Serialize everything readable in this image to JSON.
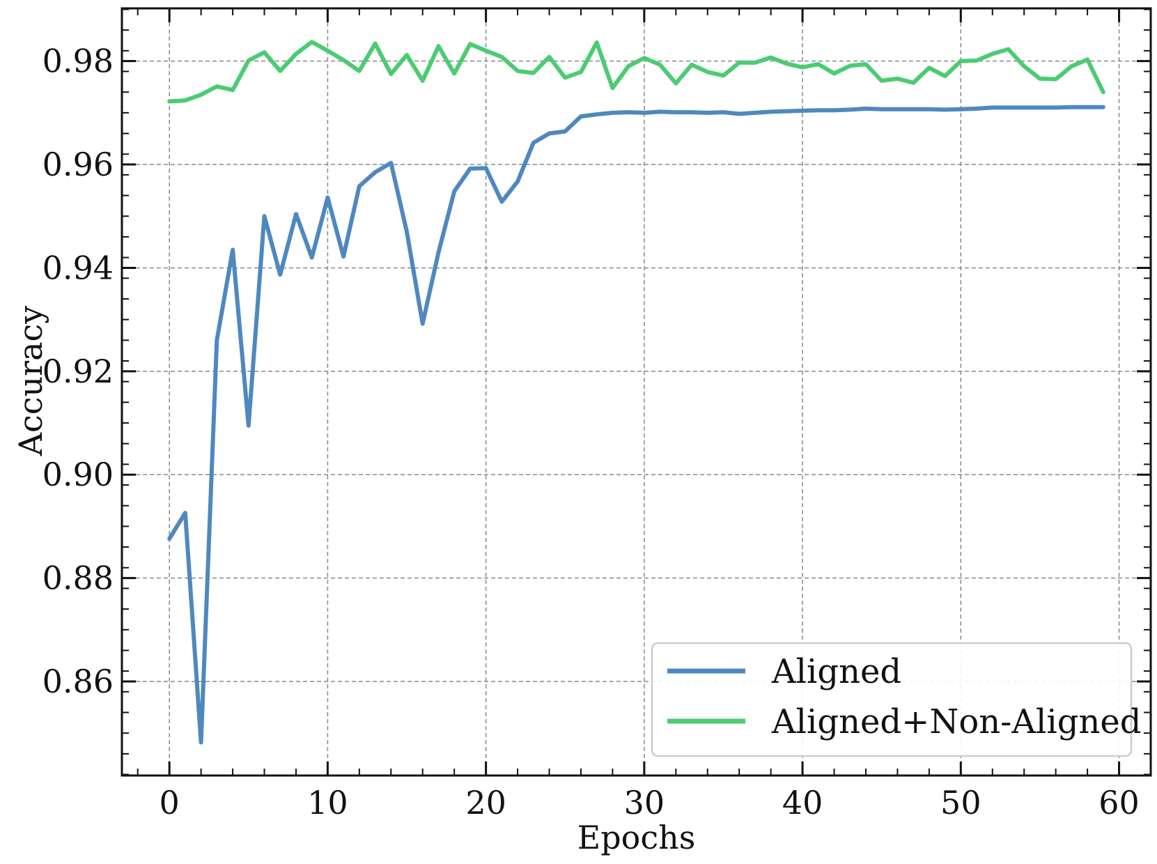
{
  "chart_data": {
    "type": "line",
    "title": "",
    "xlabel": "Epochs",
    "ylabel": "Accuracy",
    "xlim": [
      -3,
      62
    ],
    "ylim": [
      0.8418,
      0.9902
    ],
    "xticks": [
      0,
      10,
      20,
      30,
      40,
      50,
      60
    ],
    "xtick_labels": [
      "0",
      "10",
      "20",
      "30",
      "40",
      "50",
      "60"
    ],
    "yticks": [
      0.86,
      0.88,
      0.9,
      0.92,
      0.94,
      0.96,
      0.98
    ],
    "ytick_labels": [
      "0.86",
      "0.88",
      "0.90",
      "0.92",
      "0.94",
      "0.96",
      "0.98"
    ],
    "grid": true,
    "legend_position": "bottom-right",
    "x": [
      0,
      1,
      2,
      3,
      4,
      5,
      6,
      7,
      8,
      9,
      10,
      11,
      12,
      13,
      14,
      15,
      16,
      17,
      18,
      19,
      20,
      21,
      22,
      23,
      24,
      25,
      26,
      27,
      28,
      29,
      30,
      31,
      32,
      33,
      34,
      35,
      36,
      37,
      38,
      39,
      40,
      41,
      42,
      43,
      44,
      45,
      46,
      47,
      48,
      49,
      50,
      51,
      52,
      53,
      54,
      55,
      56,
      57,
      58,
      59
    ],
    "series": [
      {
        "name": "Aligned",
        "color": "#4f88c0",
        "values": [
          0.8876,
          0.8926,
          0.8482,
          0.926,
          0.9435,
          0.9095,
          0.95,
          0.9387,
          0.9504,
          0.942,
          0.9536,
          0.9422,
          0.9558,
          0.9585,
          0.9603,
          0.947,
          0.9292,
          0.943,
          0.9548,
          0.9592,
          0.9593,
          0.9528,
          0.9567,
          0.9642,
          0.966,
          0.9664,
          0.9693,
          0.9697,
          0.97,
          0.9701,
          0.97,
          0.9702,
          0.9701,
          0.9701,
          0.97,
          0.9701,
          0.9698,
          0.97,
          0.9702,
          0.9703,
          0.9704,
          0.9705,
          0.9705,
          0.9706,
          0.9708,
          0.9707,
          0.9707,
          0.9707,
          0.9707,
          0.9706,
          0.9707,
          0.9708,
          0.971,
          0.971,
          0.971,
          0.971,
          0.971,
          0.9711,
          0.9711,
          0.9711
        ]
      },
      {
        "name": "Aligned+Non-Aligned",
        "color": "#4ccb73",
        "values": [
          0.9722,
          0.9724,
          0.9735,
          0.9751,
          0.9744,
          0.9801,
          0.9817,
          0.9781,
          0.9814,
          0.9837,
          0.982,
          0.9802,
          0.9781,
          0.9834,
          0.9775,
          0.9812,
          0.9762,
          0.9829,
          0.9776,
          0.9833,
          0.982,
          0.9808,
          0.9781,
          0.9777,
          0.9808,
          0.9768,
          0.9779,
          0.9836,
          0.9748,
          0.979,
          0.9806,
          0.9793,
          0.9757,
          0.9793,
          0.9779,
          0.9772,
          0.9797,
          0.9797,
          0.9807,
          0.9795,
          0.9788,
          0.9794,
          0.9776,
          0.9791,
          0.9794,
          0.9762,
          0.9766,
          0.9758,
          0.9787,
          0.9771,
          0.98,
          0.9801,
          0.9814,
          0.9823,
          0.979,
          0.9766,
          0.9765,
          0.979,
          0.9803,
          0.974
        ]
      }
    ]
  }
}
